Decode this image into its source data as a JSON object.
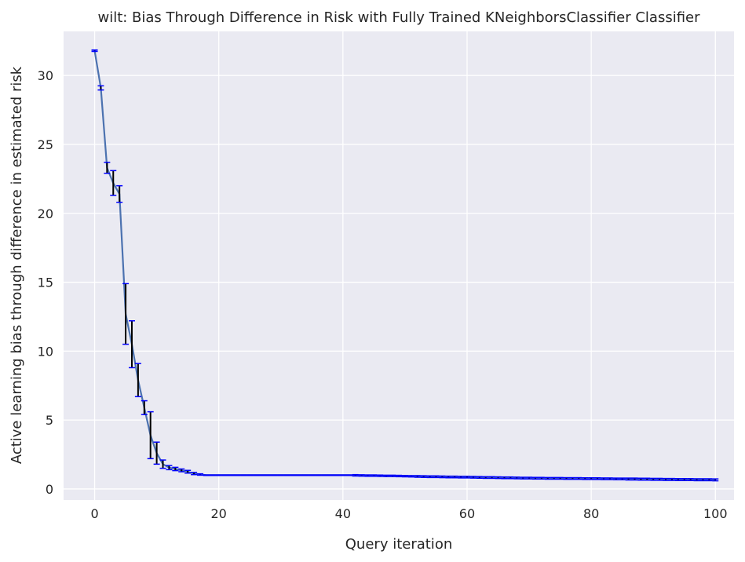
{
  "chart_data": {
    "type": "line",
    "title": "wilt: Bias Through Difference in Risk with Fully Trained KNeighborsClassifier Classifier",
    "xlabel": "Query iteration",
    "ylabel": "Active learning bias through difference in estimated risk",
    "xlim": [
      -5,
      103
    ],
    "ylim": [
      -0.8,
      33.2
    ],
    "xticks": [
      0,
      20,
      40,
      60,
      80,
      100
    ],
    "yticks": [
      0,
      5,
      10,
      15,
      20,
      25,
      30
    ],
    "grid": true,
    "background": "#eaeaf2",
    "grid_color": "#ffffff",
    "line_color": "#4c72b0",
    "errorbar_color": "#000000",
    "cap_color": "#0000ff",
    "series": [
      {
        "x": [
          0,
          1,
          2,
          3,
          4,
          5,
          6,
          7,
          8,
          9,
          10,
          11,
          12,
          13,
          14,
          15,
          16,
          17,
          18,
          19,
          20,
          21,
          22,
          23,
          24,
          25,
          26,
          27,
          28,
          29,
          30,
          31,
          32,
          33,
          34,
          35,
          36,
          37,
          38,
          39,
          40,
          41,
          42,
          43,
          44,
          45,
          46,
          47,
          48,
          49,
          50,
          51,
          52,
          53,
          54,
          55,
          56,
          57,
          58,
          59,
          60,
          61,
          62,
          63,
          64,
          65,
          66,
          67,
          68,
          69,
          70,
          71,
          72,
          73,
          74,
          75,
          76,
          77,
          78,
          79,
          80,
          81,
          82,
          83,
          84,
          85,
          86,
          87,
          88,
          89,
          90,
          91,
          92,
          93,
          94,
          95,
          96,
          97,
          98,
          99,
          100
        ],
        "y": [
          31.8,
          29.1,
          23.3,
          22.2,
          21.4,
          12.7,
          10.5,
          7.9,
          5.9,
          3.9,
          2.6,
          1.8,
          1.55,
          1.45,
          1.35,
          1.25,
          1.12,
          1.05,
          1.0,
          1.0,
          1.0,
          1.0,
          1.0,
          1.0,
          1.0,
          1.0,
          1.0,
          1.0,
          1.0,
          1.0,
          1.0,
          1.0,
          1.0,
          1.0,
          1.0,
          1.0,
          1.0,
          1.0,
          1.0,
          1.0,
          1.0,
          1.0,
          0.99,
          0.98,
          0.97,
          0.97,
          0.96,
          0.95,
          0.95,
          0.94,
          0.93,
          0.92,
          0.91,
          0.9,
          0.89,
          0.89,
          0.88,
          0.87,
          0.87,
          0.86,
          0.86,
          0.85,
          0.84,
          0.83,
          0.83,
          0.82,
          0.81,
          0.81,
          0.8,
          0.79,
          0.79,
          0.78,
          0.78,
          0.77,
          0.77,
          0.77,
          0.76,
          0.76,
          0.76,
          0.75,
          0.75,
          0.75,
          0.74,
          0.74,
          0.73,
          0.73,
          0.72,
          0.72,
          0.71,
          0.71,
          0.7,
          0.7,
          0.69,
          0.69,
          0.68,
          0.68,
          0.68,
          0.67,
          0.67,
          0.67,
          0.66
        ],
        "err": [
          0.05,
          0.15,
          0.4,
          0.9,
          0.6,
          2.2,
          1.7,
          1.2,
          0.5,
          1.7,
          0.8,
          0.3,
          0.15,
          0.12,
          0.1,
          0.1,
          0.08,
          0.05,
          0.02,
          0.02,
          0.02,
          0.02,
          0.02,
          0.02,
          0.02,
          0.02,
          0.02,
          0.02,
          0.02,
          0.02,
          0.02,
          0.02,
          0.02,
          0.02,
          0.02,
          0.02,
          0.02,
          0.02,
          0.02,
          0.02,
          0.02,
          0.02,
          0.05,
          0.05,
          0.05,
          0.05,
          0.05,
          0.05,
          0.05,
          0.05,
          0.05,
          0.05,
          0.06,
          0.06,
          0.06,
          0.06,
          0.06,
          0.06,
          0.06,
          0.06,
          0.06,
          0.06,
          0.06,
          0.06,
          0.06,
          0.06,
          0.06,
          0.06,
          0.06,
          0.06,
          0.06,
          0.06,
          0.06,
          0.06,
          0.06,
          0.06,
          0.06,
          0.06,
          0.06,
          0.06,
          0.06,
          0.06,
          0.06,
          0.06,
          0.06,
          0.06,
          0.07,
          0.07,
          0.07,
          0.07,
          0.07,
          0.07,
          0.07,
          0.07,
          0.07,
          0.07,
          0.07,
          0.07,
          0.07,
          0.07,
          0.07
        ]
      }
    ]
  }
}
